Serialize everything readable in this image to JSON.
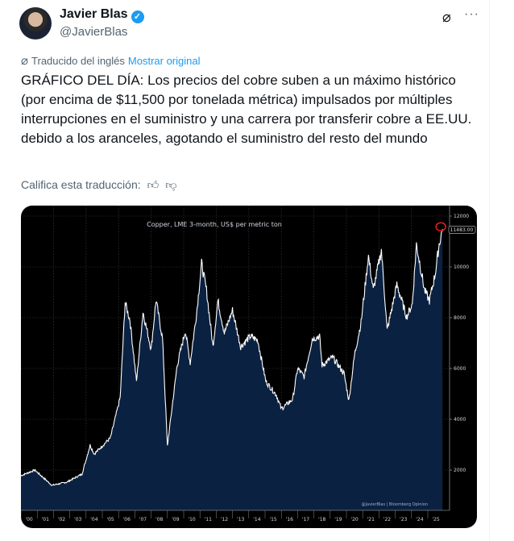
{
  "author": {
    "name": "Javier Blas",
    "handle": "@JavierBlas",
    "verified": true
  },
  "icons": {
    "grok": "grok-icon",
    "more": "more-icon",
    "like": "thumbs-up-icon",
    "dislike": "thumbs-down-icon"
  },
  "translation": {
    "label": "Traducido del inglés",
    "show_original": "Mostrar original"
  },
  "tweet_text": "GRÁFICO DEL DÍA: Los precios del cobre suben a un máximo histórico (por encima de $11,500 por tonelada métrica) impulsados por múltiples interrupciones en el suministro y una carrera por transferir cobre a EE.UU. debido a los aranceles, agotando el suministro del resto del mundo",
  "rate_label": "Califica esta traducción:",
  "chart_data": {
    "type": "area",
    "title": "Copper, LME 3-month, US$ per metric ton",
    "source": "@JavierBlas | Bloomberg Opinion",
    "last_value_label": "11483.00",
    "xlim": [
      2000,
      2025.95
    ],
    "ylim": [
      400,
      12000
    ],
    "y_ticks": [
      2000,
      4000,
      6000,
      8000,
      10000,
      12000
    ],
    "x_tick_labels": [
      "'00",
      "'01",
      "'02",
      "'03",
      "'04",
      "'05",
      "'06",
      "'07",
      "'08",
      "'09",
      "'10",
      "'11",
      "'12",
      "'13",
      "'14",
      "'15",
      "'16",
      "'17",
      "'18",
      "'19",
      "'20",
      "'21",
      "'22",
      "'23",
      "'24",
      "'25"
    ],
    "grid": true,
    "colors": {
      "line": "#ffffff",
      "fill": "#0b2142",
      "background": "#000000",
      "highlight": "#e0201b"
    },
    "x": [
      2000.0,
      2000.85,
      2001.9,
      2002.8,
      2003.75,
      2004.25,
      2004.5,
      2005.5,
      2006.1,
      2006.4,
      2006.7,
      2007.1,
      2007.5,
      2008.0,
      2008.3,
      2008.7,
      2009.0,
      2009.6,
      2010.1,
      2010.4,
      2010.8,
      2011.1,
      2011.4,
      2011.8,
      2012.1,
      2012.5,
      2013.0,
      2013.5,
      2014.1,
      2014.55,
      2015.05,
      2015.7,
      2016.0,
      2016.7,
      2017.0,
      2017.4,
      2017.9,
      2018.35,
      2018.5,
      2019.15,
      2019.85,
      2020.15,
      2020.5,
      2020.9,
      2021.35,
      2021.65,
      2022.15,
      2022.5,
      2023.1,
      2023.7,
      2024.05,
      2024.3,
      2024.8,
      2025.1,
      2025.45,
      2025.7,
      2025.9
    ],
    "values": [
      1780,
      2000,
      1400,
      1520,
      1840,
      2980,
      2630,
      3270,
      4860,
      8600,
      7900,
      5490,
      8220,
      6760,
      8700,
      7170,
      2950,
      6130,
      7490,
      6220,
      8220,
      10130,
      9080,
      6860,
      8670,
      7400,
      8290,
      6860,
      7270,
      7110,
      5490,
      4950,
      4410,
      4790,
      6000,
      5680,
      7170,
      7270,
      6130,
      6440,
      5810,
      4730,
      6540,
      7810,
      10440,
      9080,
      10670,
      7490,
      9300,
      8030,
      8540,
      10890,
      9080,
      8670,
      9710,
      10890,
      11483
    ]
  }
}
